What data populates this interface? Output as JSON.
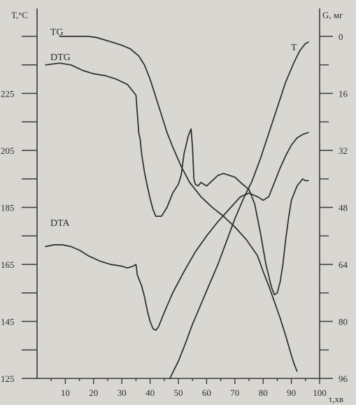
{
  "chart_data": {
    "type": "line",
    "left_axis_title": "T,°C",
    "right_axis_title": "G, мг",
    "x_axis_title": "τ,хв",
    "x_ticks": [
      10,
      20,
      30,
      40,
      50,
      60,
      70,
      80,
      90,
      100
    ],
    "xlim": [
      0,
      100
    ],
    "left_ticks": [
      125,
      145,
      165,
      185,
      205,
      225
    ],
    "left_ylim": [
      125,
      245
    ],
    "right_ticks": [
      0,
      16,
      32,
      48,
      64,
      80,
      96
    ],
    "right_ylim": [
      0,
      96
    ],
    "series": [
      {
        "name": "TG",
        "axis": "right",
        "points": [
          [
            8,
            0
          ],
          [
            18,
            0
          ],
          [
            21,
            0.3
          ],
          [
            26,
            1.5
          ],
          [
            30,
            2.5
          ],
          [
            33,
            3.5
          ],
          [
            36,
            5.5
          ],
          [
            38,
            8
          ],
          [
            40,
            12
          ],
          [
            42,
            17
          ],
          [
            44,
            22
          ],
          [
            46,
            27
          ],
          [
            48,
            31
          ],
          [
            51,
            36.5
          ],
          [
            54,
            41
          ],
          [
            58,
            45
          ],
          [
            62,
            48
          ],
          [
            66,
            50.5
          ],
          [
            70,
            53.5
          ],
          [
            74,
            57
          ],
          [
            78,
            61.5
          ],
          [
            80,
            66
          ],
          [
            82,
            70
          ],
          [
            84,
            74.5
          ],
          [
            86,
            79
          ],
          [
            88,
            84
          ],
          [
            90,
            89.5
          ],
          [
            91,
            92
          ],
          [
            92,
            94
          ]
        ]
      },
      {
        "name": "DTG",
        "axis": "right",
        "points": [
          [
            3,
            8
          ],
          [
            8,
            7.5
          ],
          [
            12,
            8
          ],
          [
            16,
            9.5
          ],
          [
            20,
            10.5
          ],
          [
            24,
            11
          ],
          [
            28,
            12
          ],
          [
            32,
            13.5
          ],
          [
            34,
            15.5
          ],
          [
            35,
            16.5
          ],
          [
            36,
            27
          ],
          [
            36.5,
            29
          ],
          [
            37,
            33
          ],
          [
            38,
            38
          ],
          [
            39,
            42
          ],
          [
            40,
            45.5
          ],
          [
            41,
            48.5
          ],
          [
            42,
            50.5
          ],
          [
            44,
            50.5
          ],
          [
            46,
            48
          ],
          [
            48,
            44
          ],
          [
            50,
            41.5
          ],
          [
            51,
            39
          ],
          [
            52,
            33
          ],
          [
            53.5,
            28
          ],
          [
            54.5,
            26
          ],
          [
            55,
            31
          ],
          [
            55.5,
            40
          ],
          [
            56,
            41.5
          ],
          [
            57,
            42
          ],
          [
            58,
            41
          ],
          [
            60,
            42
          ],
          [
            62,
            40.5
          ],
          [
            64,
            39
          ],
          [
            66,
            38.5
          ],
          [
            68,
            39
          ],
          [
            70,
            39.5
          ],
          [
            72,
            41
          ],
          [
            75,
            43
          ],
          [
            77,
            47
          ],
          [
            79,
            55
          ],
          [
            81,
            64
          ],
          [
            83,
            70.5
          ],
          [
            84,
            72.5
          ],
          [
            85,
            72
          ],
          [
            86,
            69
          ],
          [
            87,
            64
          ],
          [
            88,
            57
          ],
          [
            89,
            51
          ],
          [
            90,
            46
          ],
          [
            92,
            42
          ],
          [
            94,
            40
          ],
          [
            95,
            40.5
          ],
          [
            96,
            40.5
          ]
        ]
      },
      {
        "name": "DTA",
        "axis": "right",
        "points": [
          [
            3,
            59
          ],
          [
            6,
            58.5
          ],
          [
            9,
            58.5
          ],
          [
            12,
            59
          ],
          [
            15,
            60
          ],
          [
            18,
            61.5
          ],
          [
            22,
            63
          ],
          [
            26,
            64
          ],
          [
            30,
            64.5
          ],
          [
            32,
            65
          ],
          [
            34,
            64.5
          ],
          [
            35,
            64
          ],
          [
            35.5,
            67
          ],
          [
            36,
            68
          ],
          [
            37,
            70
          ],
          [
            38,
            73
          ],
          [
            39,
            77
          ],
          [
            40,
            80
          ],
          [
            41,
            82
          ],
          [
            42,
            82.5
          ],
          [
            43,
            81.5
          ],
          [
            45,
            77.5
          ],
          [
            48,
            72
          ],
          [
            52,
            66
          ],
          [
            56,
            60.5
          ],
          [
            60,
            56
          ],
          [
            64,
            52
          ],
          [
            68,
            48.5
          ],
          [
            72,
            45
          ],
          [
            75,
            44
          ],
          [
            78,
            45
          ],
          [
            80,
            46
          ],
          [
            82,
            45
          ],
          [
            84,
            41
          ],
          [
            86,
            37
          ],
          [
            88,
            33.5
          ],
          [
            90,
            30.5
          ],
          [
            92,
            28.5
          ],
          [
            94,
            27.5
          ],
          [
            96,
            27
          ]
        ]
      },
      {
        "name": "T",
        "axis": "left",
        "points": [
          [
            47,
            125
          ],
          [
            50,
            131
          ],
          [
            52,
            136
          ],
          [
            55,
            144
          ],
          [
            58,
            151
          ],
          [
            61,
            158
          ],
          [
            64,
            165
          ],
          [
            67,
            173
          ],
          [
            70,
            181
          ],
          [
            73,
            188
          ],
          [
            76,
            194
          ],
          [
            79,
            202
          ],
          [
            82,
            211
          ],
          [
            85,
            220
          ],
          [
            88,
            229
          ],
          [
            91,
            236
          ],
          [
            93,
            240
          ],
          [
            95,
            242.5
          ],
          [
            96,
            243
          ]
        ]
      }
    ],
    "series_label_text": [
      "TG",
      "DTG",
      "DTA",
      "T"
    ]
  }
}
